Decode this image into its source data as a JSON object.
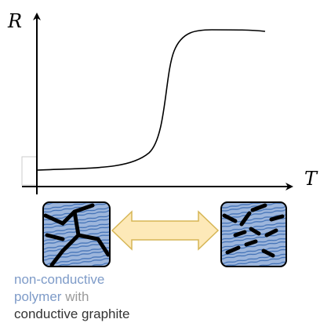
{
  "axes": {
    "y_label": "R",
    "x_label": "T"
  },
  "caption": {
    "line1": "non-conductive",
    "line2_polymer": "polymer",
    "line2_with": "with",
    "line3": "conductive graphite"
  }
}
